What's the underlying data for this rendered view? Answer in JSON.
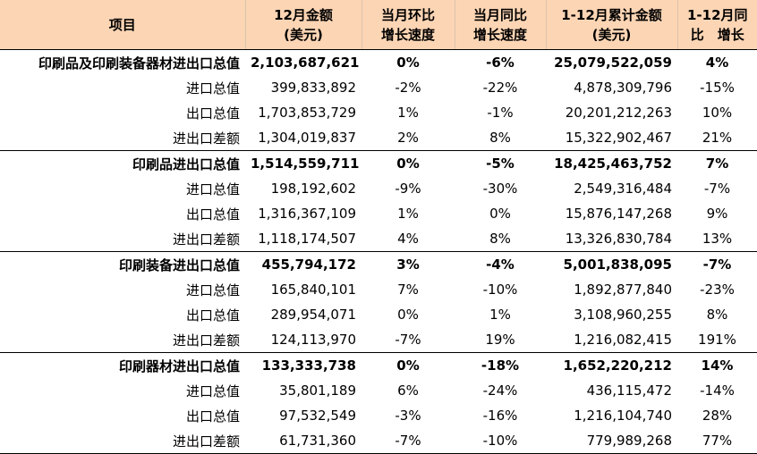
{
  "header": {
    "col0": "项目",
    "col1_line1": "12月金额",
    "col1_line2": "(美元)",
    "col2_line1": "当月环比",
    "col2_line2": "增长速度",
    "col3_line1": "当月同比",
    "col3_line2": "增长速度",
    "col4_line1": "1-12月累计金额",
    "col4_line2": "(美元)",
    "col5_line1": "1-12月同",
    "col5_line2": "比　增长"
  },
  "rows": [
    {
      "name": "印刷品及印刷装备器材进出口总值",
      "amount": "2,103,687,621",
      "mom": "0%",
      "yoy": "-6%",
      "cumulative": "25,079,522,059",
      "cum_yoy": "4%"
    },
    {
      "name": "进口总值",
      "amount": "399,833,892",
      "mom": "-2%",
      "yoy": "-22%",
      "cumulative": "4,878,309,796",
      "cum_yoy": "-15%"
    },
    {
      "name": "出口总值",
      "amount": "1,703,853,729",
      "mom": "1%",
      "yoy": "-1%",
      "cumulative": "20,201,212,263",
      "cum_yoy": "10%"
    },
    {
      "name": "进出口差额",
      "amount": "1,304,019,837",
      "mom": "2%",
      "yoy": "8%",
      "cumulative": "15,322,902,467",
      "cum_yoy": "21%"
    },
    {
      "name": "印刷品进出口总值",
      "amount": "1,514,559,711",
      "mom": "0%",
      "yoy": "-5%",
      "cumulative": "18,425,463,752",
      "cum_yoy": "7%"
    },
    {
      "name": "进口总值",
      "amount": "198,192,602",
      "mom": "-9%",
      "yoy": "-30%",
      "cumulative": "2,549,316,484",
      "cum_yoy": "-7%"
    },
    {
      "name": "出口总值",
      "amount": "1,316,367,109",
      "mom": "1%",
      "yoy": "0%",
      "cumulative": "15,876,147,268",
      "cum_yoy": "9%"
    },
    {
      "name": "进出口差额",
      "amount": "1,118,174,507",
      "mom": "4%",
      "yoy": "8%",
      "cumulative": "13,326,830,784",
      "cum_yoy": "13%"
    },
    {
      "name": "印刷装备进出口总值",
      "amount": "455,794,172",
      "mom": "3%",
      "yoy": "-4%",
      "cumulative": "5,001,838,095",
      "cum_yoy": "-7%"
    },
    {
      "name": "进口总值",
      "amount": "165,840,101",
      "mom": "7%",
      "yoy": "-10%",
      "cumulative": "1,892,877,840",
      "cum_yoy": "-23%"
    },
    {
      "name": "出口总值",
      "amount": "289,954,071",
      "mom": "0%",
      "yoy": "1%",
      "cumulative": "3,108,960,255",
      "cum_yoy": "8%"
    },
    {
      "name": "进出口差额",
      "amount": "124,113,970",
      "mom": "-7%",
      "yoy": "19%",
      "cumulative": "1,216,082,415",
      "cum_yoy": "191%"
    },
    {
      "name": "印刷器材进出口总值",
      "amount": "133,333,738",
      "mom": "0%",
      "yoy": "-18%",
      "cumulative": "1,652,220,212",
      "cum_yoy": "14%"
    },
    {
      "name": "进口总值",
      "amount": "35,801,189",
      "mom": "6%",
      "yoy": "-24%",
      "cumulative": "436,115,472",
      "cum_yoy": "-14%"
    },
    {
      "name": "出口总值",
      "amount": "97,532,549",
      "mom": "-3%",
      "yoy": "-16%",
      "cumulative": "1,216,104,740",
      "cum_yoy": "28%"
    },
    {
      "name": "进出口差额",
      "amount": "61,731,360",
      "mom": "-7%",
      "yoy": "-10%",
      "cumulative": "779,989,268",
      "cum_yoy": "77%"
    }
  ]
}
